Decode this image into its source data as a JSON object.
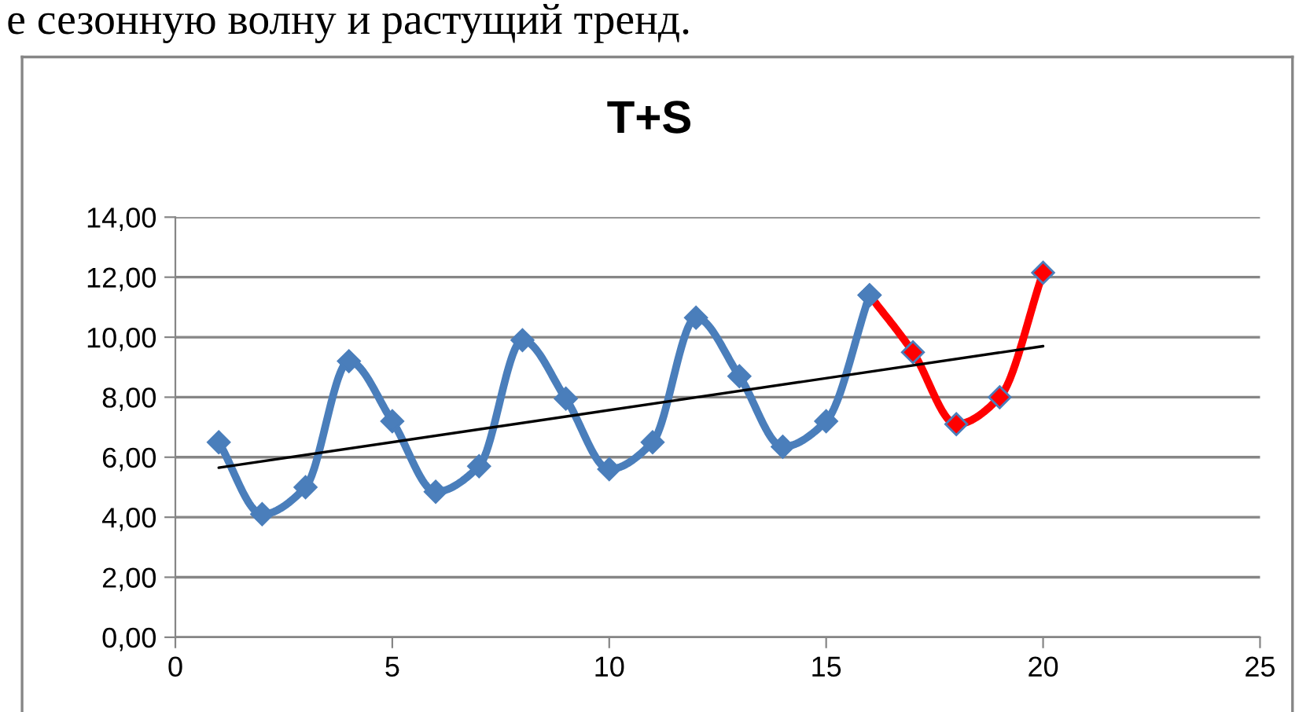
{
  "chart_data": {
    "type": "line",
    "title": "T+S",
    "annotations": [
      "е сезонную волну и растущий тренд."
    ],
    "series": [
      {
        "color": "#4a7ebb",
        "x": [
          1,
          2,
          3,
          4,
          5,
          6,
          7,
          8,
          9,
          10,
          11,
          12,
          13,
          14,
          15,
          16
        ],
        "values": [
          6.5,
          4.1,
          5.0,
          9.2,
          7.2,
          4.85,
          5.7,
          9.9,
          7.95,
          5.6,
          6.5,
          10.65,
          8.7,
          6.35,
          7.2,
          11.4
        ]
      },
      {
        "color": "#ff0000",
        "x": [
          16,
          17,
          18,
          19,
          20
        ],
        "values": [
          11.4,
          9.5,
          7.1,
          8.0,
          12.15
        ]
      },
      {
        "color": "#000000",
        "x": [
          1,
          20
        ],
        "values": [
          5.65,
          9.7
        ],
        "marker": "none"
      }
    ],
    "marker": "diamond",
    "line_style": "solid",
    "xlim": [
      0,
      25
    ],
    "xticks": [
      0,
      5,
      10,
      15,
      20,
      25
    ],
    "ylim": [
      0,
      14
    ],
    "yticks": [
      {
        "value": 0,
        "label": "0,00"
      },
      {
        "value": 2,
        "label": "2,00"
      },
      {
        "value": 4,
        "label": "4,00"
      },
      {
        "value": 6,
        "label": "6,00"
      },
      {
        "value": 8,
        "label": "8,00"
      },
      {
        "value": 10,
        "label": "10,00"
      },
      {
        "value": 12,
        "label": "12,00"
      },
      {
        "value": 14,
        "label": "14,00"
      }
    ],
    "grid": "y",
    "legend": false
  }
}
